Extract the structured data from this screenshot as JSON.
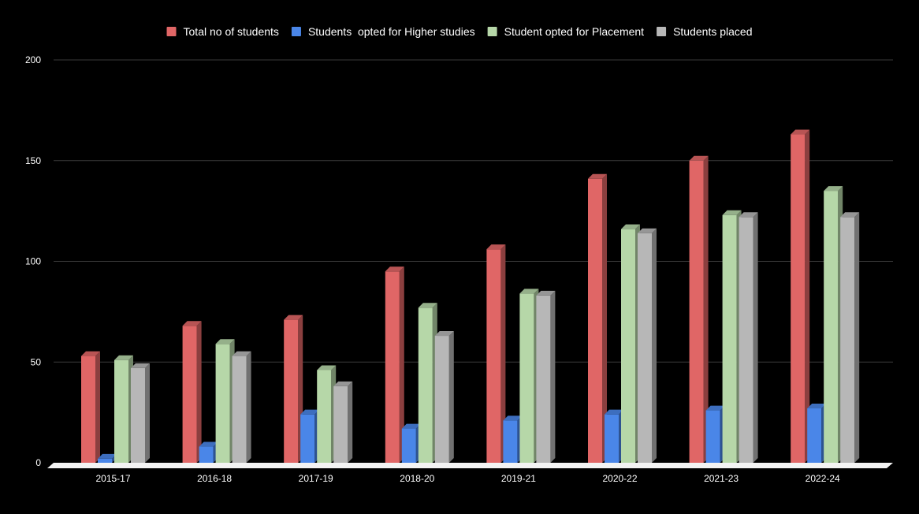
{
  "chart_data": {
    "type": "bar",
    "style": "3d",
    "title": "",
    "xlabel": "",
    "ylabel": "",
    "ylim": [
      0,
      200
    ],
    "yticks": [
      "0",
      "50",
      "100",
      "150",
      "200"
    ],
    "grid": true,
    "legend_position": "top",
    "background": "#000000",
    "categories": [
      "2015-17",
      "2016-18",
      "2017-19",
      "2018-20",
      "2019-21",
      "2020-22",
      "2021-23",
      "2022-24"
    ],
    "series": [
      {
        "name": "Total no of students",
        "color": "#e06666",
        "values": [
          53,
          68,
          71,
          95,
          106,
          141,
          150,
          163
        ]
      },
      {
        "name": "Students  opted for Higher studies",
        "color": "#4a86e8",
        "values": [
          2,
          8,
          24,
          17,
          21,
          24,
          26,
          27
        ]
      },
      {
        "name": "Student opted for Placement",
        "color": "#b6d7a8",
        "values": [
          51,
          59,
          46,
          77,
          84,
          116,
          123,
          135
        ]
      },
      {
        "name": "Students placed",
        "color": "#b7b7b7",
        "values": [
          47,
          53,
          38,
          63,
          83,
          114,
          122,
          122
        ]
      }
    ]
  }
}
